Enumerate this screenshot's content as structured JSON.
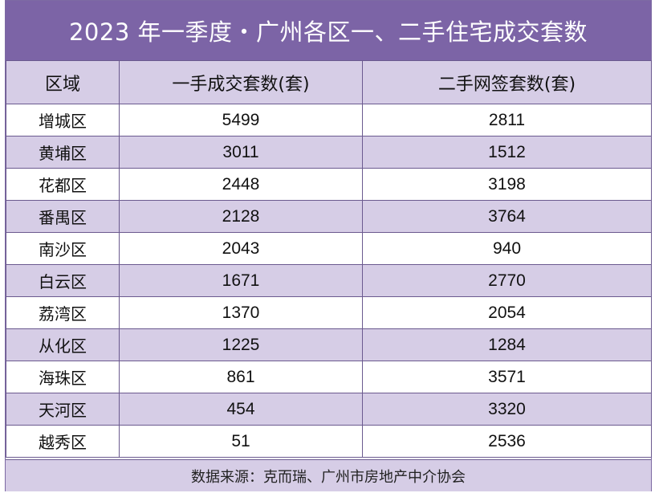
{
  "title": "2023 年一季度・广州各区一、二手住宅成交套数",
  "source": "数据来源：克而瑞、广州市房地产中介协会",
  "colors": {
    "header": "#7c64a6",
    "band": "#d6cde6",
    "border": "#6b5a8f"
  },
  "chart_data": {
    "type": "table",
    "columns": [
      "区域",
      "一手成交套数(套)",
      "二手网签套数(套)"
    ],
    "rows": [
      [
        "增城区",
        "5499",
        "2811"
      ],
      [
        "黄埔区",
        "3011",
        "1512"
      ],
      [
        "花都区",
        "2448",
        "3198"
      ],
      [
        "番禺区",
        "2128",
        "3764"
      ],
      [
        "南沙区",
        "2043",
        "940"
      ],
      [
        "白云区",
        "1671",
        "2770"
      ],
      [
        "荔湾区",
        "1370",
        "2054"
      ],
      [
        "从化区",
        "1225",
        "1284"
      ],
      [
        "海珠区",
        "861",
        "3571"
      ],
      [
        "天河区",
        "454",
        "3320"
      ],
      [
        "越秀区",
        "51",
        "2536"
      ]
    ]
  }
}
